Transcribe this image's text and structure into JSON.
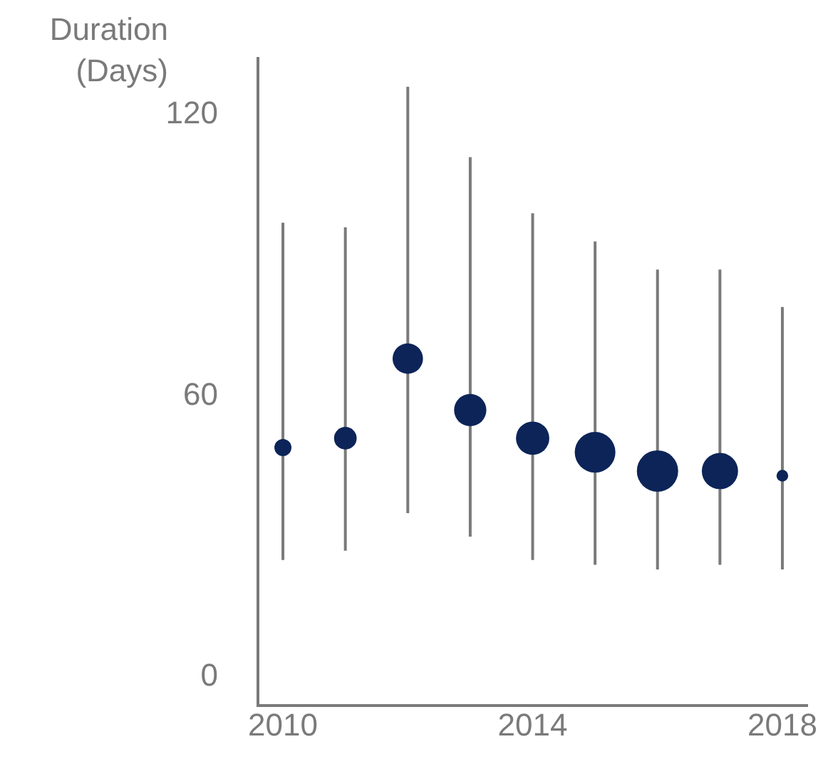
{
  "chart_data": {
    "type": "bubble",
    "ylabel": "Duration\n(Days)",
    "x": [
      2010,
      2011,
      2012,
      2013,
      2014,
      2015,
      2016,
      2017,
      2018
    ],
    "values": [
      49,
      51,
      68,
      57,
      51,
      48,
      44,
      44,
      43
    ],
    "sizes": [
      0.17,
      0.3,
      0.54,
      0.61,
      0.65,
      0.97,
      1,
      0.77,
      0.08
    ],
    "errors": [
      [
        25,
        97
      ],
      [
        27,
        96
      ],
      [
        35,
        126
      ],
      [
        30,
        111
      ],
      [
        25,
        99
      ],
      [
        24,
        93
      ],
      [
        23,
        87
      ],
      [
        24,
        87
      ],
      [
        23,
        79
      ]
    ],
    "color": "#0c2458",
    "xlim": [
      2009.6,
      2018.4
    ],
    "xticks": [
      2010,
      2014,
      2018
    ],
    "ylim": [
      -6,
      132
    ],
    "yticks": [
      0,
      60,
      120
    ],
    "grid": false
  }
}
